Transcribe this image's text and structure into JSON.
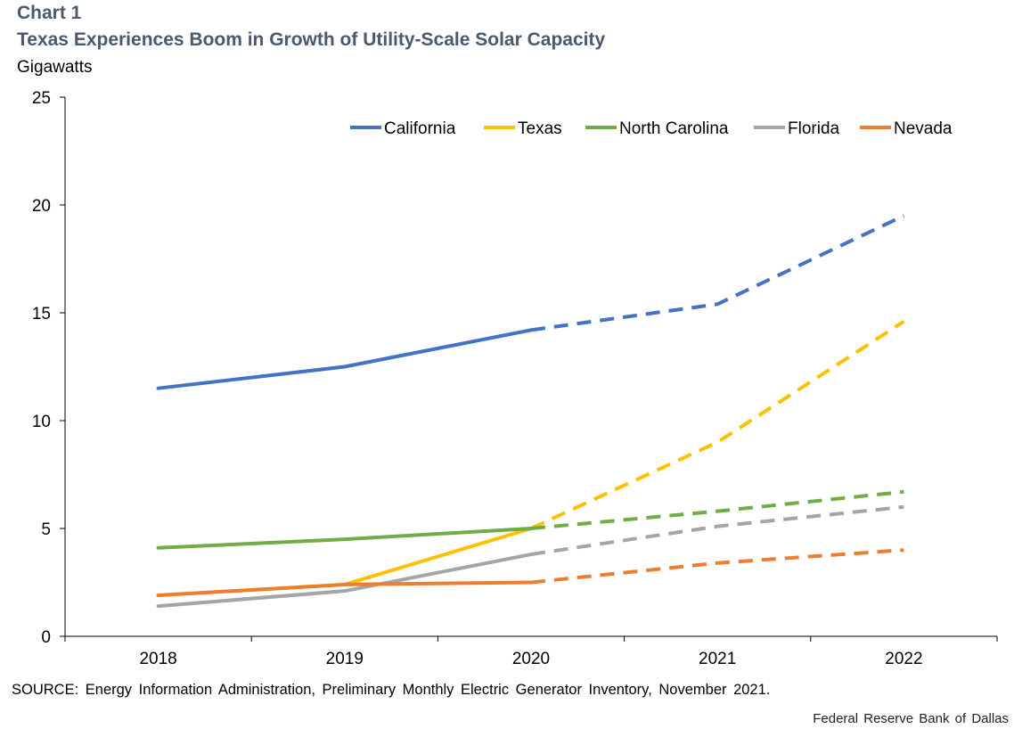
{
  "header": {
    "chart_label": "Chart 1",
    "title": "Texas Experiences Boom in Growth of Utility-Scale Solar Capacity",
    "unit_label": "Gigawatts"
  },
  "chart_data": {
    "type": "line",
    "title": "Texas Experiences Boom in Growth of Utility-Scale Solar Capacity",
    "ylabel": "Gigawatts",
    "xlabel": "",
    "ylim": [
      0,
      25
    ],
    "yticks": [
      0,
      5,
      10,
      15,
      20,
      25
    ],
    "categories": [
      "2018",
      "2019",
      "2020",
      "2021",
      "2022"
    ],
    "projection_start_index": 2,
    "legend_position": "top-right",
    "series": [
      {
        "name": "California",
        "color": "#4472c4",
        "values": [
          11.5,
          12.5,
          14.2,
          15.4,
          19.5
        ]
      },
      {
        "name": "Texas",
        "color": "#ffc000",
        "values": [
          1.9,
          2.4,
          5.0,
          9.0,
          14.6
        ]
      },
      {
        "name": "North Carolina",
        "color": "#70ad47",
        "values": [
          4.1,
          4.5,
          5.0,
          5.8,
          6.7
        ]
      },
      {
        "name": "Florida",
        "color": "#a5a5a5",
        "values": [
          1.4,
          2.1,
          3.8,
          5.1,
          6.0
        ]
      },
      {
        "name": "Nevada",
        "color": "#ed7d31",
        "values": [
          1.9,
          2.4,
          2.5,
          3.4,
          4.0
        ]
      }
    ]
  },
  "footer": {
    "source": "SOURCE: Energy Information Administration, Preliminary Monthly Electric Generator Inventory, November 2021.",
    "credit": "Federal Reserve Bank of Dallas"
  }
}
